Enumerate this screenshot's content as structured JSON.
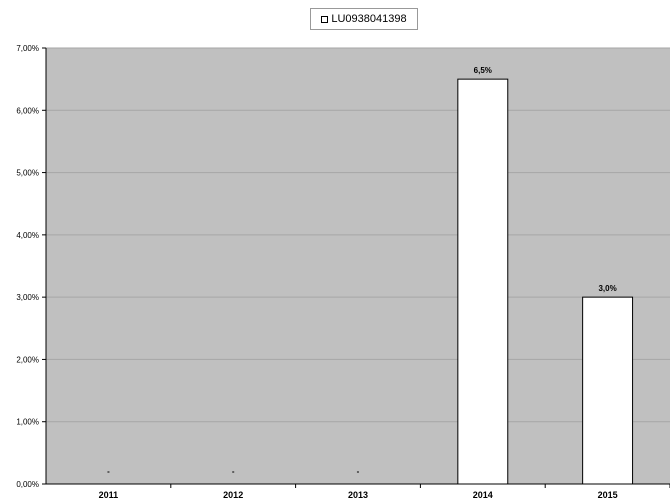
{
  "chart_data": {
    "type": "bar",
    "categories": [
      "2011",
      "2012",
      "2013",
      "2014",
      "2015"
    ],
    "series": [
      {
        "name": "LU0938041398",
        "values": [
          null,
          null,
          null,
          6.5,
          3.0
        ]
      }
    ],
    "data_labels": [
      "-",
      "-",
      "-",
      "6,5%",
      "3,0%"
    ],
    "y_ticks": [
      "0,00%",
      "1,00%",
      "2,00%",
      "3,00%",
      "4,00%",
      "5,00%",
      "6,00%",
      "7,00%"
    ],
    "ylim": [
      0,
      7
    ],
    "grid": true,
    "legend_position": "top",
    "colors": {
      "plot_bg": "#c0c0c0",
      "bar_fill": "#ffffff",
      "bar_stroke": "#000000",
      "gridline": "#a6a6a6"
    }
  }
}
